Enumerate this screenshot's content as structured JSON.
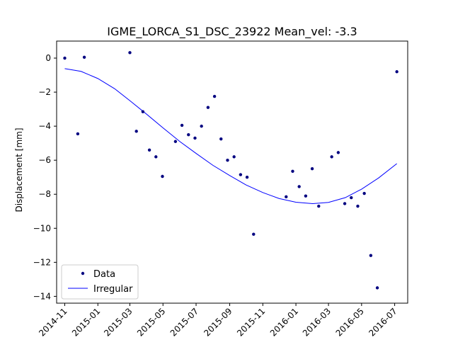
{
  "chart_data": {
    "type": "scatter",
    "title": "IGME_LORCA_S1_DSC_23922     Mean_vel: -3.3",
    "xlabel": "",
    "ylabel": "Displacement [mm]",
    "xlim": [
      "2014-10-17",
      "2016-07-25"
    ],
    "ylim": [
      -14.4,
      1.0
    ],
    "grid": false,
    "legend_position": "lower-left",
    "x_ticks": [
      "2014-11",
      "2015-01",
      "2015-03",
      "2015-05",
      "2015-07",
      "2015-09",
      "2015-11",
      "2016-01",
      "2016-03",
      "2016-05",
      "2016-07"
    ],
    "y_ticks": [
      "0",
      "−2",
      "−4",
      "−6",
      "−8",
      "−10",
      "−12",
      "−14"
    ],
    "series": [
      {
        "name": "Data",
        "kind": "points",
        "color": "#000080",
        "points": [
          {
            "x": "2014-11-01",
            "y": 0.0
          },
          {
            "x": "2014-11-25",
            "y": -4.45
          },
          {
            "x": "2014-12-07",
            "y": 0.05
          },
          {
            "x": "2015-03-01",
            "y": 0.32
          },
          {
            "x": "2015-03-13",
            "y": -4.3
          },
          {
            "x": "2015-03-25",
            "y": -3.15
          },
          {
            "x": "2015-04-06",
            "y": -5.4
          },
          {
            "x": "2015-04-18",
            "y": -5.8
          },
          {
            "x": "2015-04-30",
            "y": -6.95
          },
          {
            "x": "2015-05-24",
            "y": -4.9
          },
          {
            "x": "2015-06-05",
            "y": -3.95
          },
          {
            "x": "2015-06-17",
            "y": -4.5
          },
          {
            "x": "2015-06-29",
            "y": -4.7
          },
          {
            "x": "2015-07-11",
            "y": -4.0
          },
          {
            "x": "2015-07-23",
            "y": -2.9
          },
          {
            "x": "2015-08-04",
            "y": -2.25
          },
          {
            "x": "2015-08-16",
            "y": -4.75
          },
          {
            "x": "2015-08-28",
            "y": -6.0
          },
          {
            "x": "2015-09-09",
            "y": -5.8
          },
          {
            "x": "2015-09-21",
            "y": -6.85
          },
          {
            "x": "2015-10-03",
            "y": -7.0
          },
          {
            "x": "2015-10-15",
            "y": -10.35
          },
          {
            "x": "2015-12-14",
            "y": -8.15
          },
          {
            "x": "2015-12-26",
            "y": -6.65
          },
          {
            "x": "2016-01-07",
            "y": -7.55
          },
          {
            "x": "2016-01-19",
            "y": -8.1
          },
          {
            "x": "2016-01-31",
            "y": -6.5
          },
          {
            "x": "2016-02-12",
            "y": -8.7
          },
          {
            "x": "2016-03-07",
            "y": -5.8
          },
          {
            "x": "2016-03-19",
            "y": -5.55
          },
          {
            "x": "2016-03-31",
            "y": -8.55
          },
          {
            "x": "2016-04-12",
            "y": -8.2
          },
          {
            "x": "2016-04-24",
            "y": -8.7
          },
          {
            "x": "2016-05-06",
            "y": -7.95
          },
          {
            "x": "2016-05-18",
            "y": -11.6
          },
          {
            "x": "2016-05-30",
            "y": -13.5
          },
          {
            "x": "2016-07-05",
            "y": -0.8
          }
        ]
      },
      {
        "name": "Irregular",
        "kind": "line",
        "color": "#0000ff",
        "points": [
          {
            "x": "2014-11-01",
            "y": -0.62
          },
          {
            "x": "2014-12-01",
            "y": -0.78
          },
          {
            "x": "2015-01-01",
            "y": -1.2
          },
          {
            "x": "2015-02-01",
            "y": -1.8
          },
          {
            "x": "2015-03-01",
            "y": -2.5
          },
          {
            "x": "2015-04-01",
            "y": -3.3
          },
          {
            "x": "2015-05-01",
            "y": -4.1
          },
          {
            "x": "2015-06-01",
            "y": -4.9
          },
          {
            "x": "2015-07-01",
            "y": -5.6
          },
          {
            "x": "2015-08-01",
            "y": -6.3
          },
          {
            "x": "2015-09-01",
            "y": -6.9
          },
          {
            "x": "2015-10-01",
            "y": -7.45
          },
          {
            "x": "2015-11-01",
            "y": -7.9
          },
          {
            "x": "2015-12-01",
            "y": -8.25
          },
          {
            "x": "2016-01-01",
            "y": -8.47
          },
          {
            "x": "2016-02-01",
            "y": -8.55
          },
          {
            "x": "2016-03-01",
            "y": -8.48
          },
          {
            "x": "2016-04-01",
            "y": -8.2
          },
          {
            "x": "2016-05-01",
            "y": -7.7
          },
          {
            "x": "2016-06-01",
            "y": -7.05
          },
          {
            "x": "2016-07-05",
            "y": -6.2
          }
        ]
      }
    ]
  }
}
